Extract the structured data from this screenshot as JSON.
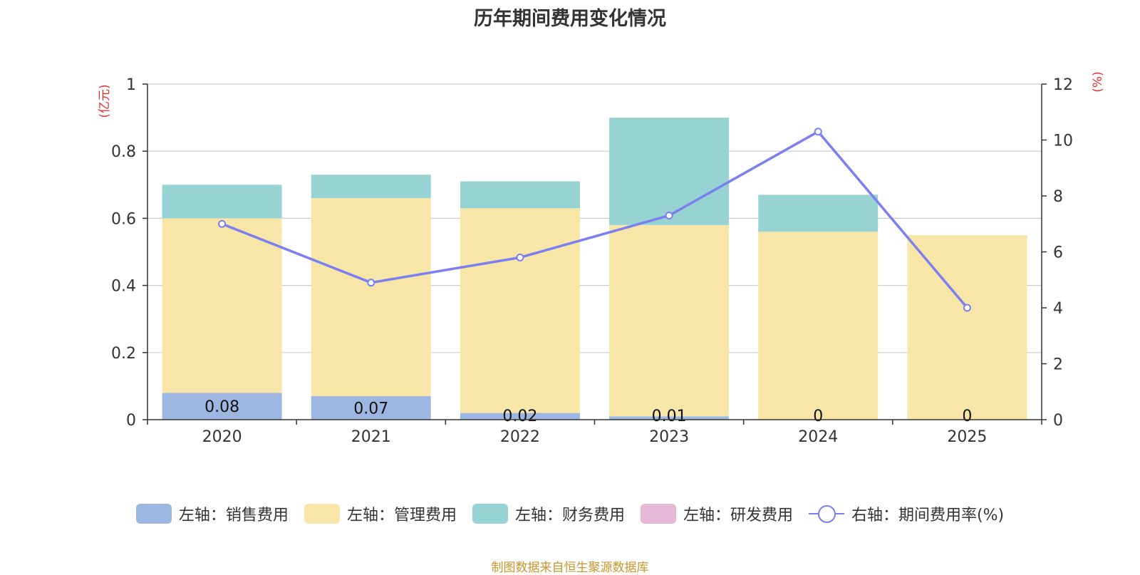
{
  "chart_data": {
    "type": "bar",
    "title": "历年期间费用变化情况",
    "categories": [
      "2020",
      "2021",
      "2022",
      "2023",
      "2024",
      "2025"
    ],
    "y_left": {
      "unit_label": "(亿元)",
      "range": [
        0,
        1
      ],
      "ticks": [
        "0",
        "0.2",
        "0.4",
        "0.6",
        "0.8",
        "1"
      ],
      "tick_values": [
        0,
        0.2,
        0.4,
        0.6,
        0.8,
        1
      ]
    },
    "y_right": {
      "unit_label": "(%)",
      "range": [
        0,
        12
      ],
      "ticks": [
        "0",
        "2",
        "4",
        "6",
        "8",
        "10",
        "12"
      ],
      "tick_values": [
        0,
        2,
        4,
        6,
        8,
        10,
        12
      ]
    },
    "series": [
      {
        "name": "左轴：销售费用",
        "color": "#9db7e2",
        "values": [
          0.08,
          0.07,
          0.02,
          0.01,
          0,
          0
        ],
        "labels": [
          "0.08",
          "0.07",
          "0.02",
          "0.01",
          "0",
          "0"
        ]
      },
      {
        "name": "左轴：管理费用",
        "color": "#f7e6a7",
        "values": [
          0.52,
          0.59,
          0.61,
          0.57,
          0.56,
          0.55
        ]
      },
      {
        "name": "左轴：财务费用",
        "color": "#98d3d4",
        "values": [
          0.1,
          0.07,
          0.08,
          0.32,
          0.11,
          0
        ]
      },
      {
        "name": "左轴：研发费用",
        "color": "#e6b8d8",
        "values": [
          0,
          0,
          0,
          0,
          0,
          0
        ]
      }
    ],
    "line_series": {
      "name": "右轴：期间费用率(%)",
      "color": "#7b7ff0",
      "axis": "right",
      "values": [
        7.0,
        4.9,
        5.8,
        7.3,
        10.3,
        4.0
      ]
    }
  },
  "footer": "制图数据来自恒生聚源数据库"
}
